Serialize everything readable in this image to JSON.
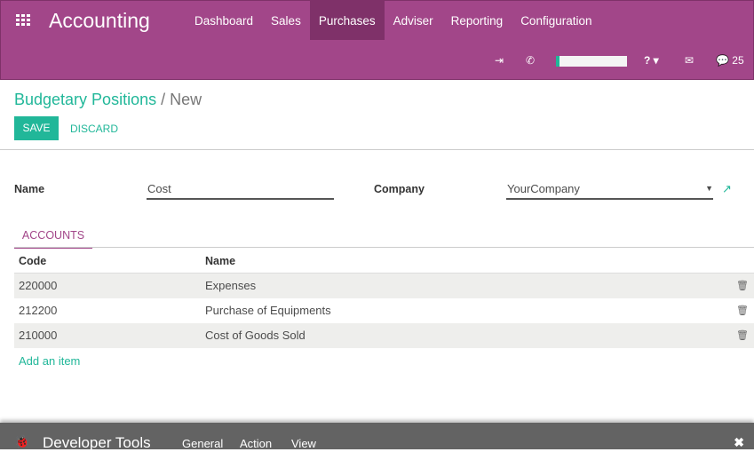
{
  "app": {
    "title": "Accounting",
    "icon": "apps-grid-icon"
  },
  "menu": [
    "Dashboard",
    "Sales",
    "Purchases",
    "Adviser",
    "Reporting",
    "Configuration"
  ],
  "menu_active": "Purchases",
  "systray": {
    "messages_count": "25"
  },
  "breadcrumb": {
    "parent": "Budgetary Positions",
    "separator": "/",
    "current": "New"
  },
  "actions": {
    "save": "SAVE",
    "discard": "DISCARD"
  },
  "form": {
    "name_label": "Name",
    "name_value": "Cost",
    "company_label": "Company",
    "company_value": "YourCompany"
  },
  "tabs": {
    "accounts": "ACCOUNTS"
  },
  "table": {
    "headers": [
      "Code",
      "Name"
    ],
    "rows": [
      {
        "code": "220000",
        "name": "Expenses"
      },
      {
        "code": "212200",
        "name": "Purchase of Equipments"
      },
      {
        "code": "210000",
        "name": "Cost of Goods Sold"
      }
    ],
    "add_item": "Add an item"
  },
  "devtools": {
    "title": "Developer Tools",
    "menu": [
      "General",
      "Action",
      "View"
    ]
  },
  "colors": {
    "brand": "#a24689",
    "brand_active": "#7f3169",
    "accent": "#21b799",
    "devbar": "#636363"
  }
}
